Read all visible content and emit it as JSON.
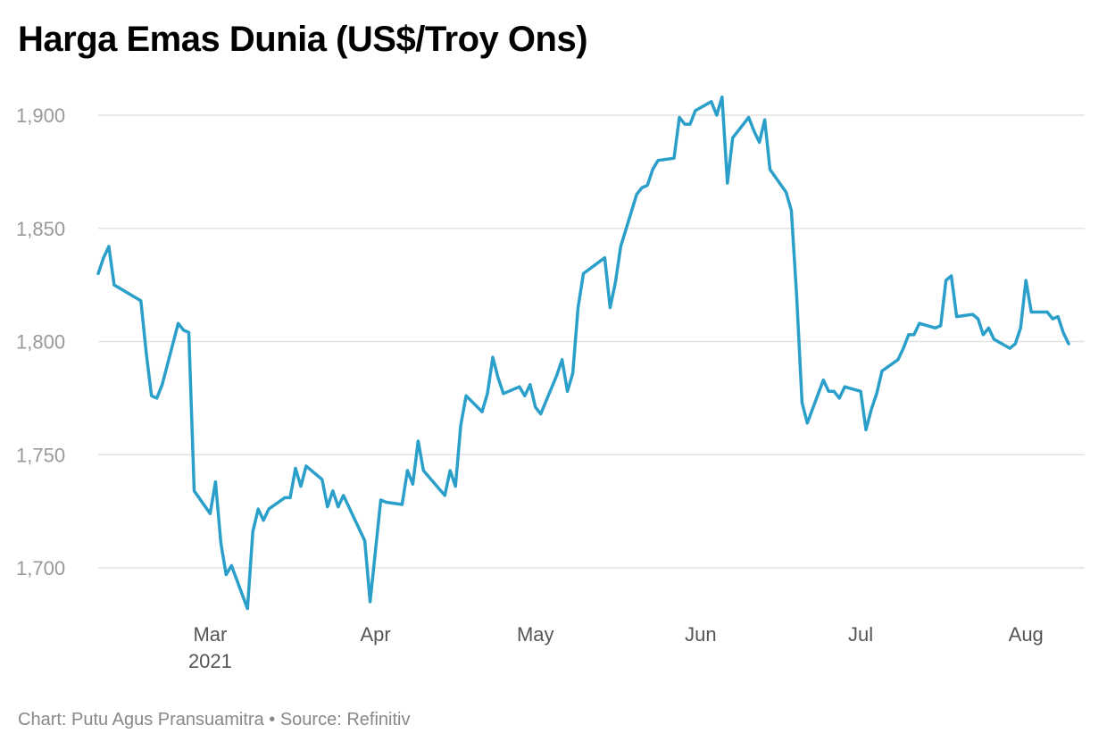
{
  "title": "Harga Emas Dunia (US$/Troy Ons)",
  "footer": {
    "chart_by": "Chart: Putu Agus Pransuamitra",
    "separator": "•",
    "source": "Source: Refinitiv"
  },
  "colors": {
    "line": "#2a9fc9",
    "grid": "#e2e2e2",
    "ytick": "#999999",
    "xtick": "#555555"
  },
  "chart_data": {
    "type": "line",
    "title": "Harga Emas Dunia (US$/Troy Ons)",
    "xlabel": "",
    "ylabel": "",
    "x_range": [
      "2021-02-08",
      "2021-08-09"
    ],
    "ylim": [
      1680,
      1910
    ],
    "yticks": [
      1700,
      1750,
      1800,
      1850,
      1900
    ],
    "ytick_labels": [
      "1,700",
      "1,750",
      "1,800",
      "1,850",
      "1,900"
    ],
    "xticks": [
      {
        "date": "2021-03-01",
        "label": "Mar",
        "sublabel": "2021"
      },
      {
        "date": "2021-04-01",
        "label": "Apr",
        "sublabel": ""
      },
      {
        "date": "2021-05-01",
        "label": "May",
        "sublabel": ""
      },
      {
        "date": "2021-06-01",
        "label": "Jun",
        "sublabel": ""
      },
      {
        "date": "2021-07-01",
        "label": "Jul",
        "sublabel": ""
      },
      {
        "date": "2021-08-01",
        "label": "Aug",
        "sublabel": ""
      }
    ],
    "grid": true,
    "legend": "none",
    "series": [
      {
        "name": "",
        "points": [
          [
            "2021-02-08",
            1830
          ],
          [
            "2021-02-09",
            1837
          ],
          [
            "2021-02-10",
            1842
          ],
          [
            "2021-02-11",
            1825
          ],
          [
            "2021-02-16",
            1818
          ],
          [
            "2021-02-17",
            1795
          ],
          [
            "2021-02-18",
            1776
          ],
          [
            "2021-02-19",
            1775
          ],
          [
            "2021-02-20",
            1781
          ],
          [
            "2021-02-23",
            1808
          ],
          [
            "2021-02-24",
            1805
          ],
          [
            "2021-02-25",
            1804
          ],
          [
            "2021-02-26",
            1734
          ],
          [
            "2021-03-01",
            1724
          ],
          [
            "2021-03-02",
            1738
          ],
          [
            "2021-03-03",
            1711
          ],
          [
            "2021-03-04",
            1697
          ],
          [
            "2021-03-05",
            1701
          ],
          [
            "2021-03-08",
            1682
          ],
          [
            "2021-03-09",
            1716
          ],
          [
            "2021-03-10",
            1726
          ],
          [
            "2021-03-11",
            1721
          ],
          [
            "2021-03-12",
            1726
          ],
          [
            "2021-03-15",
            1731
          ],
          [
            "2021-03-16",
            1731
          ],
          [
            "2021-03-17",
            1744
          ],
          [
            "2021-03-18",
            1736
          ],
          [
            "2021-03-19",
            1745
          ],
          [
            "2021-03-22",
            1739
          ],
          [
            "2021-03-23",
            1727
          ],
          [
            "2021-03-24",
            1734
          ],
          [
            "2021-03-25",
            1727
          ],
          [
            "2021-03-26",
            1732
          ],
          [
            "2021-03-30",
            1712
          ],
          [
            "2021-03-31",
            1685
          ],
          [
            "2021-04-02",
            1730
          ],
          [
            "2021-04-03",
            1729
          ],
          [
            "2021-04-06",
            1728
          ],
          [
            "2021-04-07",
            1743
          ],
          [
            "2021-04-08",
            1737
          ],
          [
            "2021-04-09",
            1756
          ],
          [
            "2021-04-10",
            1743
          ],
          [
            "2021-04-14",
            1732
          ],
          [
            "2021-04-15",
            1743
          ],
          [
            "2021-04-16",
            1736
          ],
          [
            "2021-04-17",
            1763
          ],
          [
            "2021-04-18",
            1776
          ],
          [
            "2021-04-21",
            1769
          ],
          [
            "2021-04-22",
            1777
          ],
          [
            "2021-04-23",
            1793
          ],
          [
            "2021-04-24",
            1784
          ],
          [
            "2021-04-25",
            1777
          ],
          [
            "2021-04-28",
            1780
          ],
          [
            "2021-04-29",
            1776
          ],
          [
            "2021-04-30",
            1781
          ],
          [
            "2021-05-01",
            1771
          ],
          [
            "2021-05-02",
            1768
          ],
          [
            "2021-05-05",
            1785
          ],
          [
            "2021-05-06",
            1792
          ],
          [
            "2021-05-07",
            1778
          ],
          [
            "2021-05-08",
            1786
          ],
          [
            "2021-05-09",
            1815
          ],
          [
            "2021-05-10",
            1830
          ],
          [
            "2021-05-14",
            1837
          ],
          [
            "2021-05-15",
            1815
          ],
          [
            "2021-05-16",
            1826
          ],
          [
            "2021-05-17",
            1842
          ],
          [
            "2021-05-20",
            1865
          ],
          [
            "2021-05-21",
            1868
          ],
          [
            "2021-05-22",
            1869
          ],
          [
            "2021-05-23",
            1876
          ],
          [
            "2021-05-24",
            1880
          ],
          [
            "2021-05-27",
            1881
          ],
          [
            "2021-05-28",
            1899
          ],
          [
            "2021-05-29",
            1896
          ],
          [
            "2021-05-30",
            1896
          ],
          [
            "2021-05-31",
            1902
          ],
          [
            "2021-06-03",
            1906
          ],
          [
            "2021-06-04",
            1900
          ],
          [
            "2021-06-05",
            1908
          ],
          [
            "2021-06-06",
            1870
          ],
          [
            "2021-06-07",
            1890
          ],
          [
            "2021-06-10",
            1899
          ],
          [
            "2021-06-11",
            1893
          ],
          [
            "2021-06-12",
            1888
          ],
          [
            "2021-06-13",
            1898
          ],
          [
            "2021-06-14",
            1876
          ],
          [
            "2021-06-17",
            1866
          ],
          [
            "2021-06-18",
            1858
          ],
          [
            "2021-06-19",
            1820
          ],
          [
            "2021-06-20",
            1773
          ],
          [
            "2021-06-21",
            1764
          ],
          [
            "2021-06-24",
            1783
          ],
          [
            "2021-06-25",
            1778
          ],
          [
            "2021-06-26",
            1778
          ],
          [
            "2021-06-27",
            1775
          ],
          [
            "2021-06-28",
            1780
          ],
          [
            "2021-07-01",
            1778
          ],
          [
            "2021-07-02",
            1761
          ],
          [
            "2021-07-03",
            1770
          ],
          [
            "2021-07-04",
            1777
          ],
          [
            "2021-07-05",
            1787
          ],
          [
            "2021-07-08",
            1792
          ],
          [
            "2021-07-09",
            1797
          ],
          [
            "2021-07-10",
            1803
          ],
          [
            "2021-07-11",
            1803
          ],
          [
            "2021-07-12",
            1808
          ],
          [
            "2021-07-15",
            1806
          ],
          [
            "2021-07-16",
            1807
          ],
          [
            "2021-07-17",
            1827
          ],
          [
            "2021-07-18",
            1829
          ],
          [
            "2021-07-19",
            1811
          ],
          [
            "2021-07-22",
            1812
          ],
          [
            "2021-07-23",
            1810
          ],
          [
            "2021-07-24",
            1803
          ],
          [
            "2021-07-25",
            1806
          ],
          [
            "2021-07-26",
            1801
          ],
          [
            "2021-07-29",
            1797
          ],
          [
            "2021-07-30",
            1799
          ],
          [
            "2021-07-31",
            1806
          ],
          [
            "2021-08-01",
            1827
          ],
          [
            "2021-08-02",
            1813
          ],
          [
            "2021-08-05",
            1813
          ],
          [
            "2021-08-06",
            1810
          ],
          [
            "2021-08-07",
            1811
          ],
          [
            "2021-08-08",
            1804
          ],
          [
            "2021-08-09",
            1799
          ]
        ]
      }
    ]
  }
}
